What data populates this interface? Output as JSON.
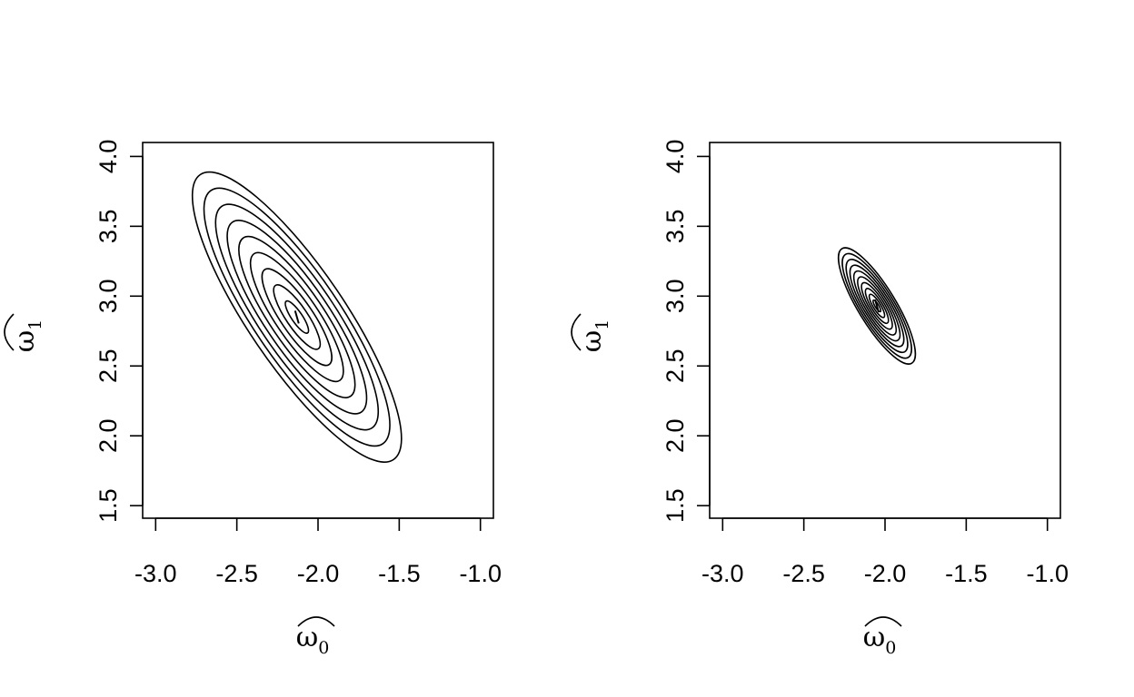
{
  "chart_data": [
    {
      "type": "contour",
      "xlabel": "ω̂₀",
      "ylabel": "ω̂₁",
      "xlabel_base": "ω",
      "xlabel_sub": "0",
      "ylabel_base": "ω",
      "ylabel_sub": "1",
      "xlim": [
        -3.08,
        -0.92
      ],
      "ylim": [
        1.41,
        4.1
      ],
      "xticks": [
        -3.0,
        -2.5,
        -2.0,
        -1.5,
        -1.0
      ],
      "xtick_labels": [
        "-3.0",
        "-2.5",
        "-2.0",
        "-1.5",
        "-1.0"
      ],
      "yticks": [
        1.5,
        2.0,
        2.5,
        3.0,
        3.5,
        4.0
      ],
      "ytick_labels": [
        "1.5",
        "2.0",
        "2.5",
        "3.0",
        "3.5",
        "4.0"
      ],
      "center": [
        -2.13,
        2.85
      ],
      "contour_levels": 9,
      "outer_extent": {
        "x": [
          -2.72,
          -1.53
        ],
        "y": [
          1.83,
          3.87
        ]
      },
      "grid": false,
      "legend": "none"
    },
    {
      "type": "contour",
      "xlabel": "ω̂₀",
      "ylabel": "ω̂₁",
      "xlabel_base": "ω",
      "xlabel_sub": "0",
      "ylabel_base": "ω",
      "ylabel_sub": "1",
      "xlim": [
        -3.08,
        -0.92
      ],
      "ylim": [
        1.41,
        4.1
      ],
      "xticks": [
        -3.0,
        -2.5,
        -2.0,
        -1.5,
        -1.0
      ],
      "xtick_labels": [
        "-3.0",
        "-2.5",
        "-2.0",
        "-1.5",
        "-1.0"
      ],
      "yticks": [
        1.5,
        2.0,
        2.5,
        3.0,
        3.5,
        4.0
      ],
      "ytick_labels": [
        "1.5",
        "2.0",
        "2.5",
        "3.0",
        "3.5",
        "4.0"
      ],
      "center": [
        -2.05,
        2.93
      ],
      "contour_levels": 10,
      "outer_extent": {
        "x": [
          -2.27,
          -1.84
        ],
        "y": [
          2.52,
          3.34
        ]
      },
      "grid": false,
      "legend": "none"
    }
  ]
}
